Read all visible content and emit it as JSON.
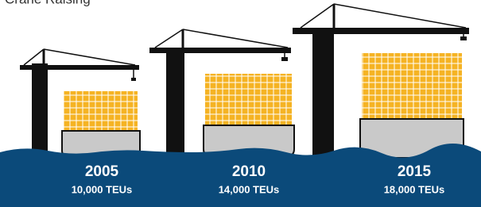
{
  "title": "Crane Raising",
  "ships": [
    {
      "year": "2005",
      "capacity": "10,000 TEUs"
    },
    {
      "year": "2010",
      "capacity": "14,000 TEUs"
    },
    {
      "year": "2015",
      "capacity": "18,000 TEUs"
    }
  ]
}
